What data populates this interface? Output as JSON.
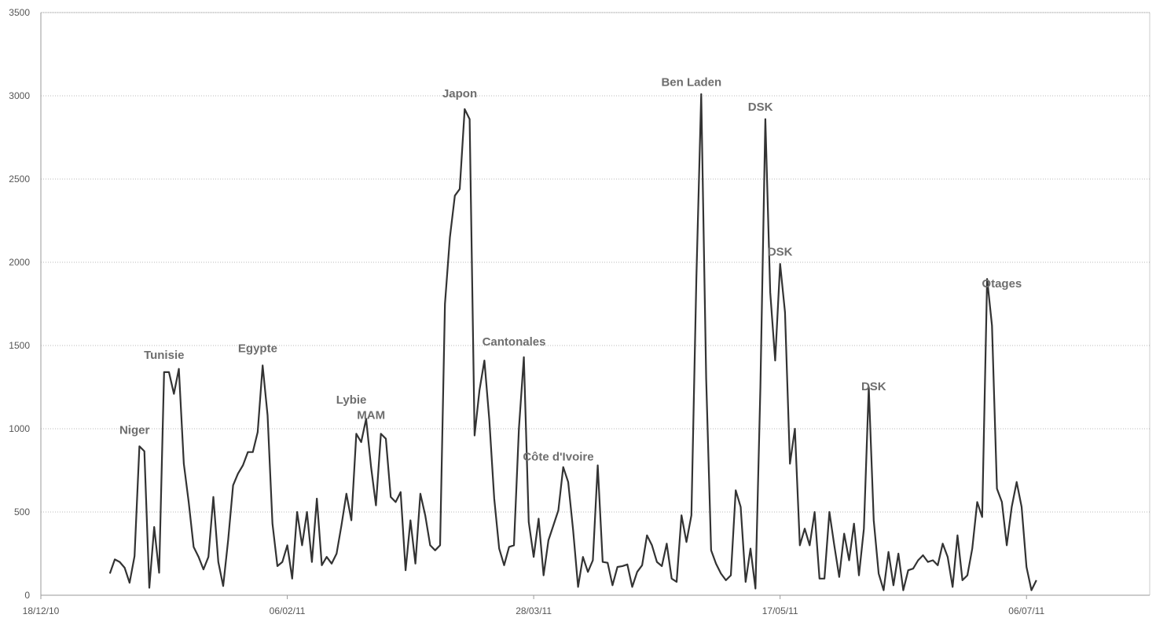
{
  "chart_data": {
    "type": "line",
    "title": "",
    "xlabel": "",
    "ylabel": "",
    "ylim": [
      0,
      3500
    ],
    "yticks": [
      0,
      500,
      1000,
      1500,
      2000,
      2500,
      3000,
      3500
    ],
    "xlim": [
      "2010-12-18",
      "2011-07-31"
    ],
    "xticks": [
      {
        "date": "2010-12-18",
        "label": "18/12/10"
      },
      {
        "date": "2011-02-06",
        "label": "06/02/11"
      },
      {
        "date": "2011-03-28",
        "label": "28/03/11"
      },
      {
        "date": "2011-05-17",
        "label": "17/05/11"
      },
      {
        "date": "2011-07-06",
        "label": "06/07/11"
      }
    ],
    "grid": true,
    "line_color": "#333333",
    "series": [
      {
        "points": [
          [
            "2011-01-01",
            130
          ],
          [
            "2011-01-02",
            215
          ],
          [
            "2011-01-03",
            200
          ],
          [
            "2011-01-04",
            165
          ],
          [
            "2011-01-05",
            75
          ],
          [
            "2011-01-06",
            235
          ],
          [
            "2011-01-07",
            895
          ],
          [
            "2011-01-08",
            865
          ],
          [
            "2011-01-09",
            45
          ],
          [
            "2011-01-10",
            410
          ],
          [
            "2011-01-11",
            135
          ],
          [
            "2011-01-12",
            1340
          ],
          [
            "2011-01-13",
            1340
          ],
          [
            "2011-01-14",
            1210
          ],
          [
            "2011-01-15",
            1360
          ],
          [
            "2011-01-16",
            790
          ],
          [
            "2011-01-17",
            560
          ],
          [
            "2011-01-18",
            290
          ],
          [
            "2011-01-19",
            230
          ],
          [
            "2011-01-20",
            155
          ],
          [
            "2011-01-21",
            230
          ],
          [
            "2011-01-22",
            590
          ],
          [
            "2011-01-23",
            200
          ],
          [
            "2011-01-24",
            55
          ],
          [
            "2011-01-25",
            330
          ],
          [
            "2011-01-26",
            660
          ],
          [
            "2011-01-27",
            730
          ],
          [
            "2011-01-28",
            780
          ],
          [
            "2011-01-29",
            860
          ],
          [
            "2011-01-30",
            860
          ],
          [
            "2011-01-31",
            980
          ],
          [
            "2011-02-01",
            1380
          ],
          [
            "2011-02-02",
            1080
          ],
          [
            "2011-02-03",
            430
          ],
          [
            "2011-02-04",
            175
          ],
          [
            "2011-02-05",
            200
          ],
          [
            "2011-02-06",
            300
          ],
          [
            "2011-02-07",
            100
          ],
          [
            "2011-02-08",
            500
          ],
          [
            "2011-02-09",
            300
          ],
          [
            "2011-02-10",
            500
          ],
          [
            "2011-02-11",
            200
          ],
          [
            "2011-02-12",
            580
          ],
          [
            "2011-02-13",
            180
          ],
          [
            "2011-02-14",
            230
          ],
          [
            "2011-02-15",
            190
          ],
          [
            "2011-02-16",
            250
          ],
          [
            "2011-02-17",
            420
          ],
          [
            "2011-02-18",
            610
          ],
          [
            "2011-02-19",
            450
          ],
          [
            "2011-02-20",
            970
          ],
          [
            "2011-02-21",
            920
          ],
          [
            "2011-02-22",
            1060
          ],
          [
            "2011-02-23",
            770
          ],
          [
            "2011-02-24",
            540
          ],
          [
            "2011-02-25",
            970
          ],
          [
            "2011-02-26",
            940
          ],
          [
            "2011-02-27",
            590
          ],
          [
            "2011-02-28",
            560
          ],
          [
            "2011-03-01",
            620
          ],
          [
            "2011-03-02",
            150
          ],
          [
            "2011-03-03",
            450
          ],
          [
            "2011-03-04",
            190
          ],
          [
            "2011-03-05",
            610
          ],
          [
            "2011-03-06",
            480
          ],
          [
            "2011-03-07",
            300
          ],
          [
            "2011-03-08",
            270
          ],
          [
            "2011-03-09",
            300
          ],
          [
            "2011-03-10",
            1750
          ],
          [
            "2011-03-11",
            2150
          ],
          [
            "2011-03-12",
            2400
          ],
          [
            "2011-03-13",
            2440
          ],
          [
            "2011-03-14",
            2920
          ],
          [
            "2011-03-15",
            2860
          ],
          [
            "2011-03-16",
            960
          ],
          [
            "2011-03-17",
            1230
          ],
          [
            "2011-03-18",
            1410
          ],
          [
            "2011-03-19",
            1050
          ],
          [
            "2011-03-20",
            580
          ],
          [
            "2011-03-21",
            280
          ],
          [
            "2011-03-22",
            180
          ],
          [
            "2011-03-23",
            290
          ],
          [
            "2011-03-24",
            300
          ],
          [
            "2011-03-25",
            1000
          ],
          [
            "2011-03-26",
            1430
          ],
          [
            "2011-03-27",
            440
          ],
          [
            "2011-03-28",
            230
          ],
          [
            "2011-03-29",
            460
          ],
          [
            "2011-03-30",
            120
          ],
          [
            "2011-03-31",
            330
          ],
          [
            "2011-04-01",
            420
          ],
          [
            "2011-04-02",
            510
          ],
          [
            "2011-04-03",
            770
          ],
          [
            "2011-04-04",
            680
          ],
          [
            "2011-04-05",
            390
          ],
          [
            "2011-04-06",
            50
          ],
          [
            "2011-04-07",
            230
          ],
          [
            "2011-04-08",
            140
          ],
          [
            "2011-04-09",
            210
          ],
          [
            "2011-04-10",
            780
          ],
          [
            "2011-04-11",
            200
          ],
          [
            "2011-04-12",
            195
          ],
          [
            "2011-04-13",
            60
          ],
          [
            "2011-04-14",
            170
          ],
          [
            "2011-04-15",
            175
          ],
          [
            "2011-04-16",
            185
          ],
          [
            "2011-04-17",
            50
          ],
          [
            "2011-04-18",
            140
          ],
          [
            "2011-04-19",
            180
          ],
          [
            "2011-04-20",
            360
          ],
          [
            "2011-04-21",
            300
          ],
          [
            "2011-04-22",
            200
          ],
          [
            "2011-04-23",
            175
          ],
          [
            "2011-04-24",
            310
          ],
          [
            "2011-04-25",
            100
          ],
          [
            "2011-04-26",
            80
          ],
          [
            "2011-04-27",
            480
          ],
          [
            "2011-04-28",
            320
          ],
          [
            "2011-04-29",
            480
          ],
          [
            "2011-04-30",
            1900
          ],
          [
            "2011-05-01",
            3010
          ],
          [
            "2011-05-02",
            1300
          ],
          [
            "2011-05-03",
            270
          ],
          [
            "2011-05-04",
            190
          ],
          [
            "2011-05-05",
            130
          ],
          [
            "2011-05-06",
            90
          ],
          [
            "2011-05-07",
            120
          ],
          [
            "2011-05-08",
            630
          ],
          [
            "2011-05-09",
            530
          ],
          [
            "2011-05-10",
            80
          ],
          [
            "2011-05-11",
            280
          ],
          [
            "2011-05-12",
            40
          ],
          [
            "2011-05-13",
            1250
          ],
          [
            "2011-05-14",
            2860
          ],
          [
            "2011-05-15",
            1820
          ],
          [
            "2011-05-16",
            1410
          ],
          [
            "2011-05-17",
            1990
          ],
          [
            "2011-05-18",
            1700
          ],
          [
            "2011-05-19",
            790
          ],
          [
            "2011-05-20",
            1000
          ],
          [
            "2011-05-21",
            300
          ],
          [
            "2011-05-22",
            400
          ],
          [
            "2011-05-23",
            300
          ],
          [
            "2011-05-24",
            500
          ],
          [
            "2011-05-25",
            100
          ],
          [
            "2011-05-26",
            100
          ],
          [
            "2011-05-27",
            500
          ],
          [
            "2011-05-28",
            300
          ],
          [
            "2011-05-29",
            110
          ],
          [
            "2011-05-30",
            370
          ],
          [
            "2011-05-31",
            210
          ],
          [
            "2011-06-01",
            430
          ],
          [
            "2011-06-02",
            120
          ],
          [
            "2011-06-03",
            400
          ],
          [
            "2011-06-04",
            1250
          ],
          [
            "2011-06-05",
            450
          ],
          [
            "2011-06-06",
            130
          ],
          [
            "2011-06-07",
            30
          ],
          [
            "2011-06-08",
            260
          ],
          [
            "2011-06-09",
            60
          ],
          [
            "2011-06-10",
            250
          ],
          [
            "2011-06-11",
            30
          ],
          [
            "2011-06-12",
            150
          ],
          [
            "2011-06-13",
            160
          ],
          [
            "2011-06-14",
            210
          ],
          [
            "2011-06-15",
            240
          ],
          [
            "2011-06-16",
            200
          ],
          [
            "2011-06-17",
            210
          ],
          [
            "2011-06-18",
            180
          ],
          [
            "2011-06-19",
            310
          ],
          [
            "2011-06-20",
            230
          ],
          [
            "2011-06-21",
            50
          ],
          [
            "2011-06-22",
            360
          ],
          [
            "2011-06-23",
            90
          ],
          [
            "2011-06-24",
            120
          ],
          [
            "2011-06-25",
            280
          ],
          [
            "2011-06-26",
            560
          ],
          [
            "2011-06-27",
            470
          ],
          [
            "2011-06-28",
            1900
          ],
          [
            "2011-06-29",
            1620
          ],
          [
            "2011-06-30",
            640
          ],
          [
            "2011-07-01",
            560
          ],
          [
            "2011-07-02",
            300
          ],
          [
            "2011-07-03",
            530
          ],
          [
            "2011-07-04",
            680
          ],
          [
            "2011-07-05",
            530
          ],
          [
            "2011-07-06",
            170
          ],
          [
            "2011-07-07",
            30
          ],
          [
            "2011-07-08",
            90
          ]
        ]
      }
    ],
    "annotations": [
      {
        "text": "Niger",
        "date": "2011-01-06",
        "value": 970
      },
      {
        "text": "Tunisie",
        "date": "2011-01-12",
        "value": 1420
      },
      {
        "text": "Egypte",
        "date": "2011-01-31",
        "value": 1460
      },
      {
        "text": "Lybie",
        "date": "2011-02-19",
        "value": 1150
      },
      {
        "text": "MAM",
        "date": "2011-02-23",
        "value": 1060
      },
      {
        "text": "Japon",
        "date": "2011-03-13",
        "value": 2990
      },
      {
        "text": "Cantonales",
        "date": "2011-03-24",
        "value": 1500
      },
      {
        "text": "Côte d'Ivoire",
        "date": "2011-04-02",
        "value": 810
      },
      {
        "text": "Ben Laden",
        "date": "2011-04-29",
        "value": 3060
      },
      {
        "text": "DSK",
        "date": "2011-05-13",
        "value": 2910
      },
      {
        "text": "DSK",
        "date": "2011-05-17",
        "value": 2040
      },
      {
        "text": "DSK",
        "date": "2011-06-05",
        "value": 1230
      },
      {
        "text": "Otages",
        "date": "2011-07-01",
        "value": 1850
      }
    ]
  }
}
